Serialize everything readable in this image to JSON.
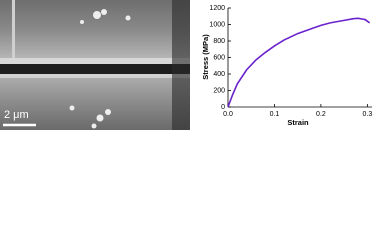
{
  "micrograph": {
    "scale_bar": "2 μm"
  },
  "chart_data": {
    "type": "line",
    "x_label": "Strain",
    "y_label": "Stress (MPa)",
    "x": [
      0,
      0.01,
      0.02,
      0.04,
      0.06,
      0.08,
      0.1,
      0.12,
      0.15,
      0.18,
      0.2,
      0.22,
      0.25,
      0.27,
      0.28,
      0.29,
      0.295,
      0.3,
      0.305
    ],
    "values": [
      0,
      150,
      280,
      450,
      570,
      660,
      740,
      810,
      890,
      950,
      990,
      1020,
      1050,
      1070,
      1075,
      1065,
      1060,
      1040,
      1020
    ],
    "color": "#6a22cc",
    "xlim": [
      0,
      0.31
    ],
    "ylim": [
      0,
      1200
    ],
    "xticks": [
      {
        "value": 0,
        "label": "0.0"
      },
      0.1,
      0.2,
      0.3
    ],
    "yticks": [
      0,
      200,
      400,
      600,
      800,
      1000,
      1200
    ]
  }
}
